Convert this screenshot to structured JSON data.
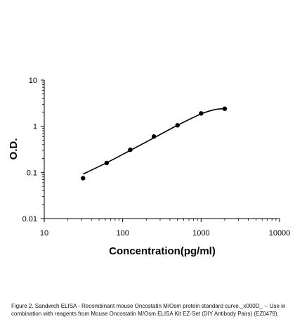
{
  "chart_data": {
    "type": "scatter",
    "scale": "log-log",
    "xlabel": "Concentration(pg/ml)",
    "ylabel": "O.D.",
    "xlim": [
      10,
      10000
    ],
    "ylim": [
      0.01,
      10
    ],
    "x_ticks": [
      "10",
      "100",
      "1000",
      "10000"
    ],
    "y_ticks": [
      "0.01",
      "0.1",
      "1",
      "10"
    ],
    "grid": false,
    "legend": "none",
    "series": [
      {
        "points": [
          {
            "x": 31.25,
            "y": 0.075
          },
          {
            "x": 62.5,
            "y": 0.16
          },
          {
            "x": 125,
            "y": 0.31
          },
          {
            "x": 250,
            "y": 0.6
          },
          {
            "x": 500,
            "y": 1.05
          },
          {
            "x": 1000,
            "y": 1.9
          },
          {
            "x": 2000,
            "y": 2.4
          }
        ],
        "fit_curve": [
          {
            "x": 31.25,
            "y": 0.092
          },
          {
            "x": 62.5,
            "y": 0.162
          },
          {
            "x": 125,
            "y": 0.3
          },
          {
            "x": 250,
            "y": 0.56
          },
          {
            "x": 500,
            "y": 1.05
          },
          {
            "x": 1000,
            "y": 1.85
          },
          {
            "x": 1500,
            "y": 2.3
          },
          {
            "x": 2000,
            "y": 2.4
          }
        ],
        "color": "#000000"
      }
    ]
  },
  "caption": "Figure 2. Sandwich ELISA - Recombinant mouse Oncostatin M/Osm protein standard curve._x000D_ -- Use in combination with reagents from Mouse Oncostatin M/Osm ELISA Kit EZ-Set (DIY Antibody Pairs) (EZ0479)."
}
